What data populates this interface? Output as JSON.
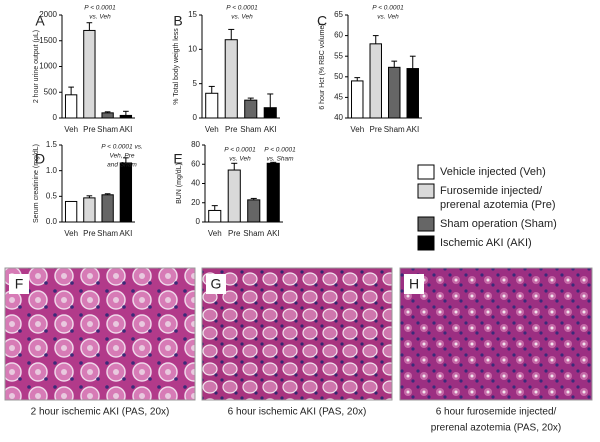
{
  "chart_data": [
    {
      "type": "bar",
      "panel": "A",
      "ylabel": "2 hour urine output (μL)",
      "categories": [
        "Veh",
        "Pre",
        "Sham",
        "AKI"
      ],
      "values": [
        450,
        1700,
        100,
        50
      ],
      "errors": [
        150,
        150,
        20,
        80
      ],
      "colors": [
        "#ffffff",
        "#d9d9d9",
        "#666666",
        "#000000"
      ],
      "ylim": [
        0,
        2000
      ],
      "yticks": [
        0,
        500,
        1000,
        1500,
        2000
      ],
      "annotations": [
        [
          "P < 0.0001",
          "vs. Veh"
        ]
      ]
    },
    {
      "type": "bar",
      "panel": "B",
      "ylabel": "% Total body weigth less",
      "categories": [
        "Veh",
        "Pre",
        "Sham",
        "AKI"
      ],
      "values": [
        3.6,
        11.4,
        2.6,
        1.5
      ],
      "errors": [
        1.0,
        1.5,
        0.3,
        2.0
      ],
      "colors": [
        "#ffffff",
        "#d9d9d9",
        "#666666",
        "#000000"
      ],
      "ylim": [
        0,
        15
      ],
      "yticks": [
        0,
        5,
        10,
        15
      ],
      "annotations": [
        [
          "P < 0.0001",
          "vs. Veh"
        ]
      ]
    },
    {
      "type": "bar",
      "panel": "C",
      "ylabel": "6 hour Hct (% RBC volume)",
      "categories": [
        "Veh",
        "Pre",
        "Sham",
        "AKI"
      ],
      "values": [
        49,
        58,
        52.3,
        52
      ],
      "errors": [
        0.8,
        2,
        1.5,
        3
      ],
      "colors": [
        "#ffffff",
        "#d9d9d9",
        "#666666",
        "#000000"
      ],
      "ylim": [
        40,
        65
      ],
      "yticks": [
        40,
        45,
        50,
        55,
        60,
        65
      ],
      "annotations": [
        [
          "P < 0.0001",
          "vs. Veh"
        ]
      ]
    },
    {
      "type": "bar",
      "panel": "D",
      "ylabel": "Serum creatinine (mg/dL)",
      "categories": [
        "Veh",
        "Pre",
        "Sham",
        "AKI"
      ],
      "values": [
        0.4,
        0.47,
        0.53,
        1.15
      ],
      "errors": [
        0,
        0.04,
        0.02,
        0.1
      ],
      "colors": [
        "#ffffff",
        "#d9d9d9",
        "#666666",
        "#000000"
      ],
      "ylim": [
        0,
        1.5
      ],
      "yticks": [
        {
          "value": 0,
          "label": "0.0"
        },
        0.5,
        {
          "value": 1,
          "label": "1.0"
        },
        1.5
      ],
      "annotations": [
        [
          "P < 0.0001 vs.",
          "Veh, Pre",
          "and Sham"
        ]
      ]
    },
    {
      "type": "bar",
      "panel": "E",
      "ylabel": "BUN (mg/dL)",
      "categories": [
        "Veh",
        "Pre",
        "Sham",
        "AKI"
      ],
      "values": [
        12,
        54,
        23,
        61
      ],
      "errors": [
        5,
        7,
        1.5,
        1
      ],
      "colors": [
        "#ffffff",
        "#d9d9d9",
        "#666666",
        "#000000"
      ],
      "ylim": [
        0,
        80
      ],
      "yticks": [
        0,
        20,
        40,
        60,
        80
      ],
      "annotations": [
        [
          "P < 0.0001",
          "vs. Veh"
        ],
        [
          "P < 0.0001",
          "vs. Sham"
        ]
      ]
    }
  ],
  "legend": [
    {
      "label": "Vehicle injected (Veh)",
      "color": "#ffffff"
    },
    {
      "label": "Furosemide injected/",
      "label2": "prerenal azotemia (Pre)",
      "color": "#d9d9d9"
    },
    {
      "label": "Sham operation (Sham)",
      "color": "#666666"
    },
    {
      "label": "Ischemic AKI (AKI)",
      "color": "#000000"
    }
  ],
  "images": [
    {
      "panel": "F",
      "caption": [
        "2 hour ischemic AKI (PAS, 20x)"
      ]
    },
    {
      "panel": "G",
      "caption": [
        "6 hour ischemic AKI (PAS, 20x)"
      ]
    },
    {
      "panel": "H",
      "caption": [
        "6 hour furosemide injected/",
        "prerenal azotemia (PAS, 20x)"
      ]
    }
  ]
}
